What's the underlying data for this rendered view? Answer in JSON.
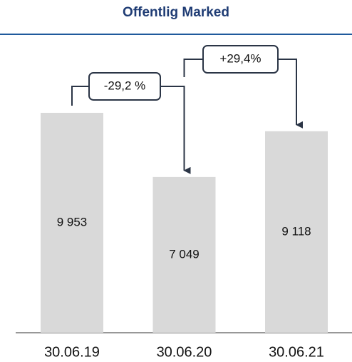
{
  "chart_data": {
    "type": "bar",
    "title": "Offentlig Marked",
    "categories": [
      "30.06.19",
      "30.06.20",
      "30.06.21"
    ],
    "values": [
      9953,
      7049,
      9118
    ],
    "value_labels": [
      "9 953",
      "7 049",
      "9 118"
    ],
    "color": "#d9d9d9",
    "annotations": [
      "-29,2 %",
      "+29,4%"
    ]
  }
}
